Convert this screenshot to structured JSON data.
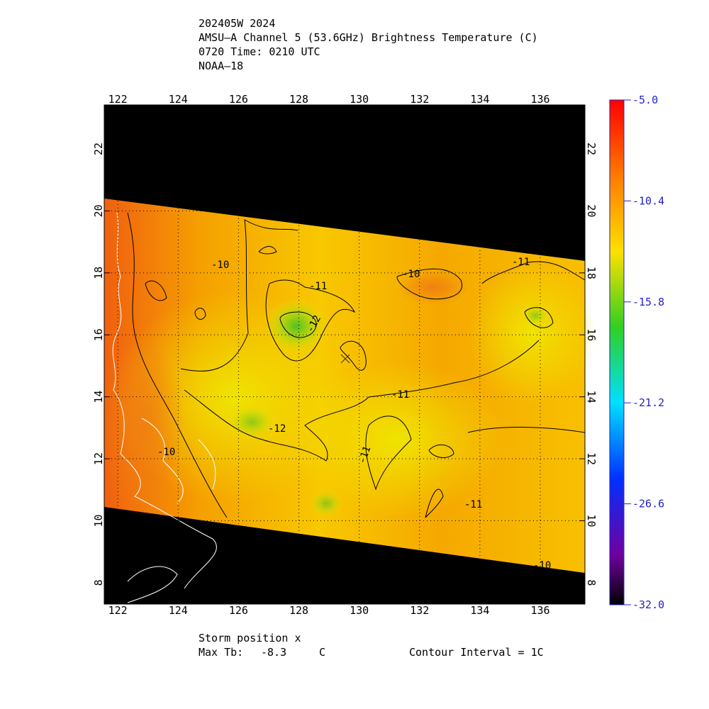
{
  "header": {
    "lines": [
      "202405W 2024",
      "AMSU–A Channel 5 (53.6GHz) Brightness Temperature (C)",
      "0720 Time: 0210 UTC",
      "NOAA–18"
    ]
  },
  "map": {
    "lonlim": [
      121.55,
      137.48
    ],
    "latlim": [
      7.31,
      23.42
    ],
    "lon_ticks": [
      122,
      124,
      126,
      128,
      130,
      132,
      134,
      136
    ],
    "lat_ticks": [
      8,
      10,
      12,
      14,
      16,
      18,
      20,
      22
    ],
    "contour_labels": [
      "-10",
      "-11",
      "-12",
      "-10",
      "-11",
      "-11",
      "-12",
      "-10",
      "-11",
      "-11",
      "-10"
    ]
  },
  "colorbar": {
    "lim": [
      -32,
      -5
    ],
    "ticks": [
      {
        "value": -5,
        "label": "-5.0"
      },
      -10.4,
      -15.8,
      -21.2,
      -26.6,
      {
        "value": -32,
        "label": "-32.0"
      }
    ]
  },
  "footer": {
    "storm": "Storm position x",
    "max_tb_label": "Max Tb:",
    "max_tb": "-8.3",
    "unit": "C",
    "contour": "Contour Interval = 1C"
  }
}
